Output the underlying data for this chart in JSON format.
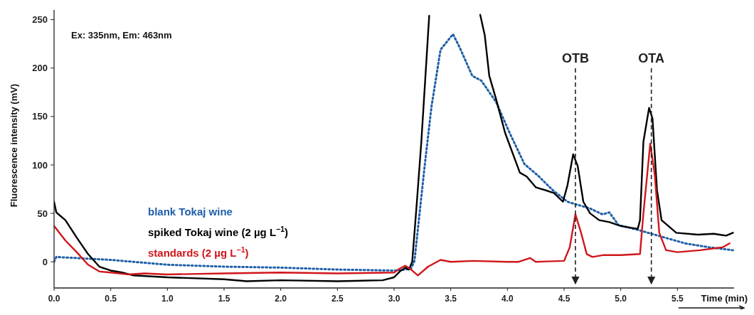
{
  "chart_data": {
    "type": "line",
    "xlabel": "Time (min)",
    "ylabel": "Fluorescence intensity (mV)",
    "annotations": [
      "Ex: 335nm, Em: 463nm"
    ],
    "xlim": [
      0,
      6.0
    ],
    "ylim": [
      -27,
      260
    ],
    "xticks": [
      {
        "value": 0,
        "label": "0.0"
      },
      {
        "value": 0.5,
        "label": "0.5"
      },
      {
        "value": 1,
        "label": "1.0"
      },
      {
        "value": 1.5,
        "label": "1.5"
      },
      {
        "value": 2,
        "label": "2.0"
      },
      {
        "value": 2.5,
        "label": "2.5"
      },
      {
        "value": 3,
        "label": "3.0"
      },
      {
        "value": 3.5,
        "label": "3.5"
      },
      {
        "value": 4,
        "label": "4.0"
      },
      {
        "value": 4.5,
        "label": "4.5"
      },
      {
        "value": 5,
        "label": "5.0"
      },
      {
        "value": 5.5,
        "label": "5.5"
      }
    ],
    "yticks": [
      0,
      50,
      100,
      150,
      200,
      250
    ],
    "grid": false,
    "legend": "left",
    "ref_lines": [
      {
        "axis": "x",
        "value": 4.6,
        "label": "OTB",
        "line_style": "dashed",
        "color": "#222222"
      },
      {
        "axis": "x",
        "value": 5.27,
        "label": "OTA",
        "line_style": "dashed",
        "color": "#222222"
      }
    ],
    "series": [
      {
        "name": "blank Tokaj wine",
        "color": "#1f5fa8",
        "line_style": "dotted",
        "x": [
          0,
          0.02,
          0.5,
          1.0,
          1.5,
          2.0,
          2.5,
          3.0,
          3.1,
          3.15,
          3.18,
          3.27,
          3.33,
          3.41,
          3.52,
          3.58,
          3.69,
          3.77,
          3.9,
          4.02,
          4.15,
          4.27,
          4.4,
          4.53,
          4.73,
          4.84,
          4.9,
          4.98,
          5.15,
          5.36,
          5.57,
          5.78,
          5.99
        ],
        "values": [
          0,
          5,
          2,
          -3,
          -5,
          -6,
          -8,
          -9,
          -8,
          -7,
          1,
          99,
          160,
          219,
          235,
          221,
          192,
          187,
          165,
          133,
          101,
          89,
          74,
          62,
          55,
          49,
          51,
          38,
          33,
          26,
          19,
          15,
          12
        ]
      },
      {
        "name": "spiked Tokaj wine (2 µg L$^{−1}$)",
        "color": "#000000",
        "line_style": "solid",
        "x": [
          0,
          0.02,
          0.1,
          0.2,
          0.3,
          0.4,
          0.5,
          0.6,
          0.7,
          1.0,
          1.5,
          1.7,
          2.0,
          2.5,
          2.9,
          3.0,
          3.05,
          3.1,
          3.13,
          3.16,
          3.2,
          3.24,
          3.31,
          3.5,
          3.76,
          3.8,
          3.84,
          3.9,
          3.98,
          4.11,
          4.17,
          4.25,
          4.36,
          4.41,
          4.49,
          4.53,
          4.58,
          4.62,
          4.67,
          4.73,
          4.81,
          4.9,
          5.0,
          5.15,
          5.17,
          5.2,
          5.25,
          5.28,
          5.32,
          5.36,
          5.49,
          5.68,
          5.82,
          5.93,
          5.99
        ],
        "values": [
          62,
          51,
          43,
          25,
          8,
          -5,
          -9,
          -11,
          -14,
          -16,
          -18,
          -20,
          -19,
          -20,
          -19,
          -16,
          -10,
          -6,
          -8,
          0,
          60,
          123,
          254,
          null,
          255,
          234,
          192,
          168,
          133,
          92,
          88,
          77,
          73,
          71,
          62,
          79,
          111,
          99,
          62,
          50,
          43,
          41,
          37,
          34,
          43,
          124,
          159,
          148,
          74,
          43,
          30,
          28,
          29,
          27,
          30
        ]
      },
      {
        "name": "standards (2 µg L$^{−1}$)",
        "color": "#d0161b",
        "line_style": "solid",
        "x": [
          0,
          0.1,
          0.2,
          0.3,
          0.4,
          0.5,
          0.65,
          0.8,
          1.0,
          1.5,
          2.0,
          2.5,
          3.0,
          3.05,
          3.1,
          3.15,
          3.21,
          3.3,
          3.41,
          3.5,
          3.7,
          4.0,
          4.1,
          4.2,
          4.25,
          4.5,
          4.55,
          4.6,
          4.65,
          4.7,
          4.75,
          4.85,
          5.0,
          5.17,
          5.2,
          5.26,
          5.3,
          5.34,
          5.4,
          5.5,
          5.7,
          5.9,
          5.96
        ],
        "values": [
          37,
          22,
          10,
          -3,
          -10,
          -11,
          -13,
          -12,
          -13,
          -12,
          -11,
          -12,
          -11,
          -7,
          -4,
          -8,
          -14,
          -5,
          2,
          0,
          1,
          0,
          0,
          4,
          0,
          1,
          15,
          49,
          30,
          8,
          5,
          7,
          7,
          8,
          50,
          122,
          90,
          30,
          12,
          10,
          12,
          15,
          19
        ]
      }
    ]
  }
}
